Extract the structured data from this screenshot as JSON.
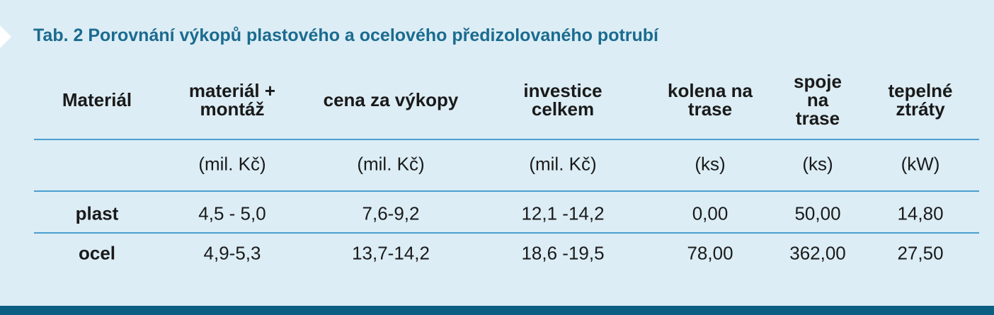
{
  "title": "Tab. 2 Porovnání výkopů plastového a ocelového předizolovaného potrubí",
  "table": {
    "headers": [
      [
        "Materiál"
      ],
      [
        "materiál +",
        "montáž"
      ],
      [
        "cena za výkopy"
      ],
      [
        "investice",
        "celkem"
      ],
      [
        "kolena na",
        "trase"
      ],
      [
        "spoje",
        "na",
        "trase"
      ],
      [
        "tepelné",
        "ztráty"
      ]
    ],
    "units": [
      "(mil. Kč)",
      "(mil. Kč)",
      "(mil. Kč)",
      "(ks)",
      "(ks)",
      "(kW)"
    ],
    "rows": [
      [
        "plast",
        "4,5 - 5,0",
        "7,6-9,2",
        "12,1 -14,2",
        "0,00",
        "50,00",
        "14,80"
      ],
      [
        "ocel",
        "4,9-5,3",
        "13,7-14,2",
        "18,6 -19,5",
        "78,00",
        "362,00",
        "27,50"
      ]
    ]
  }
}
